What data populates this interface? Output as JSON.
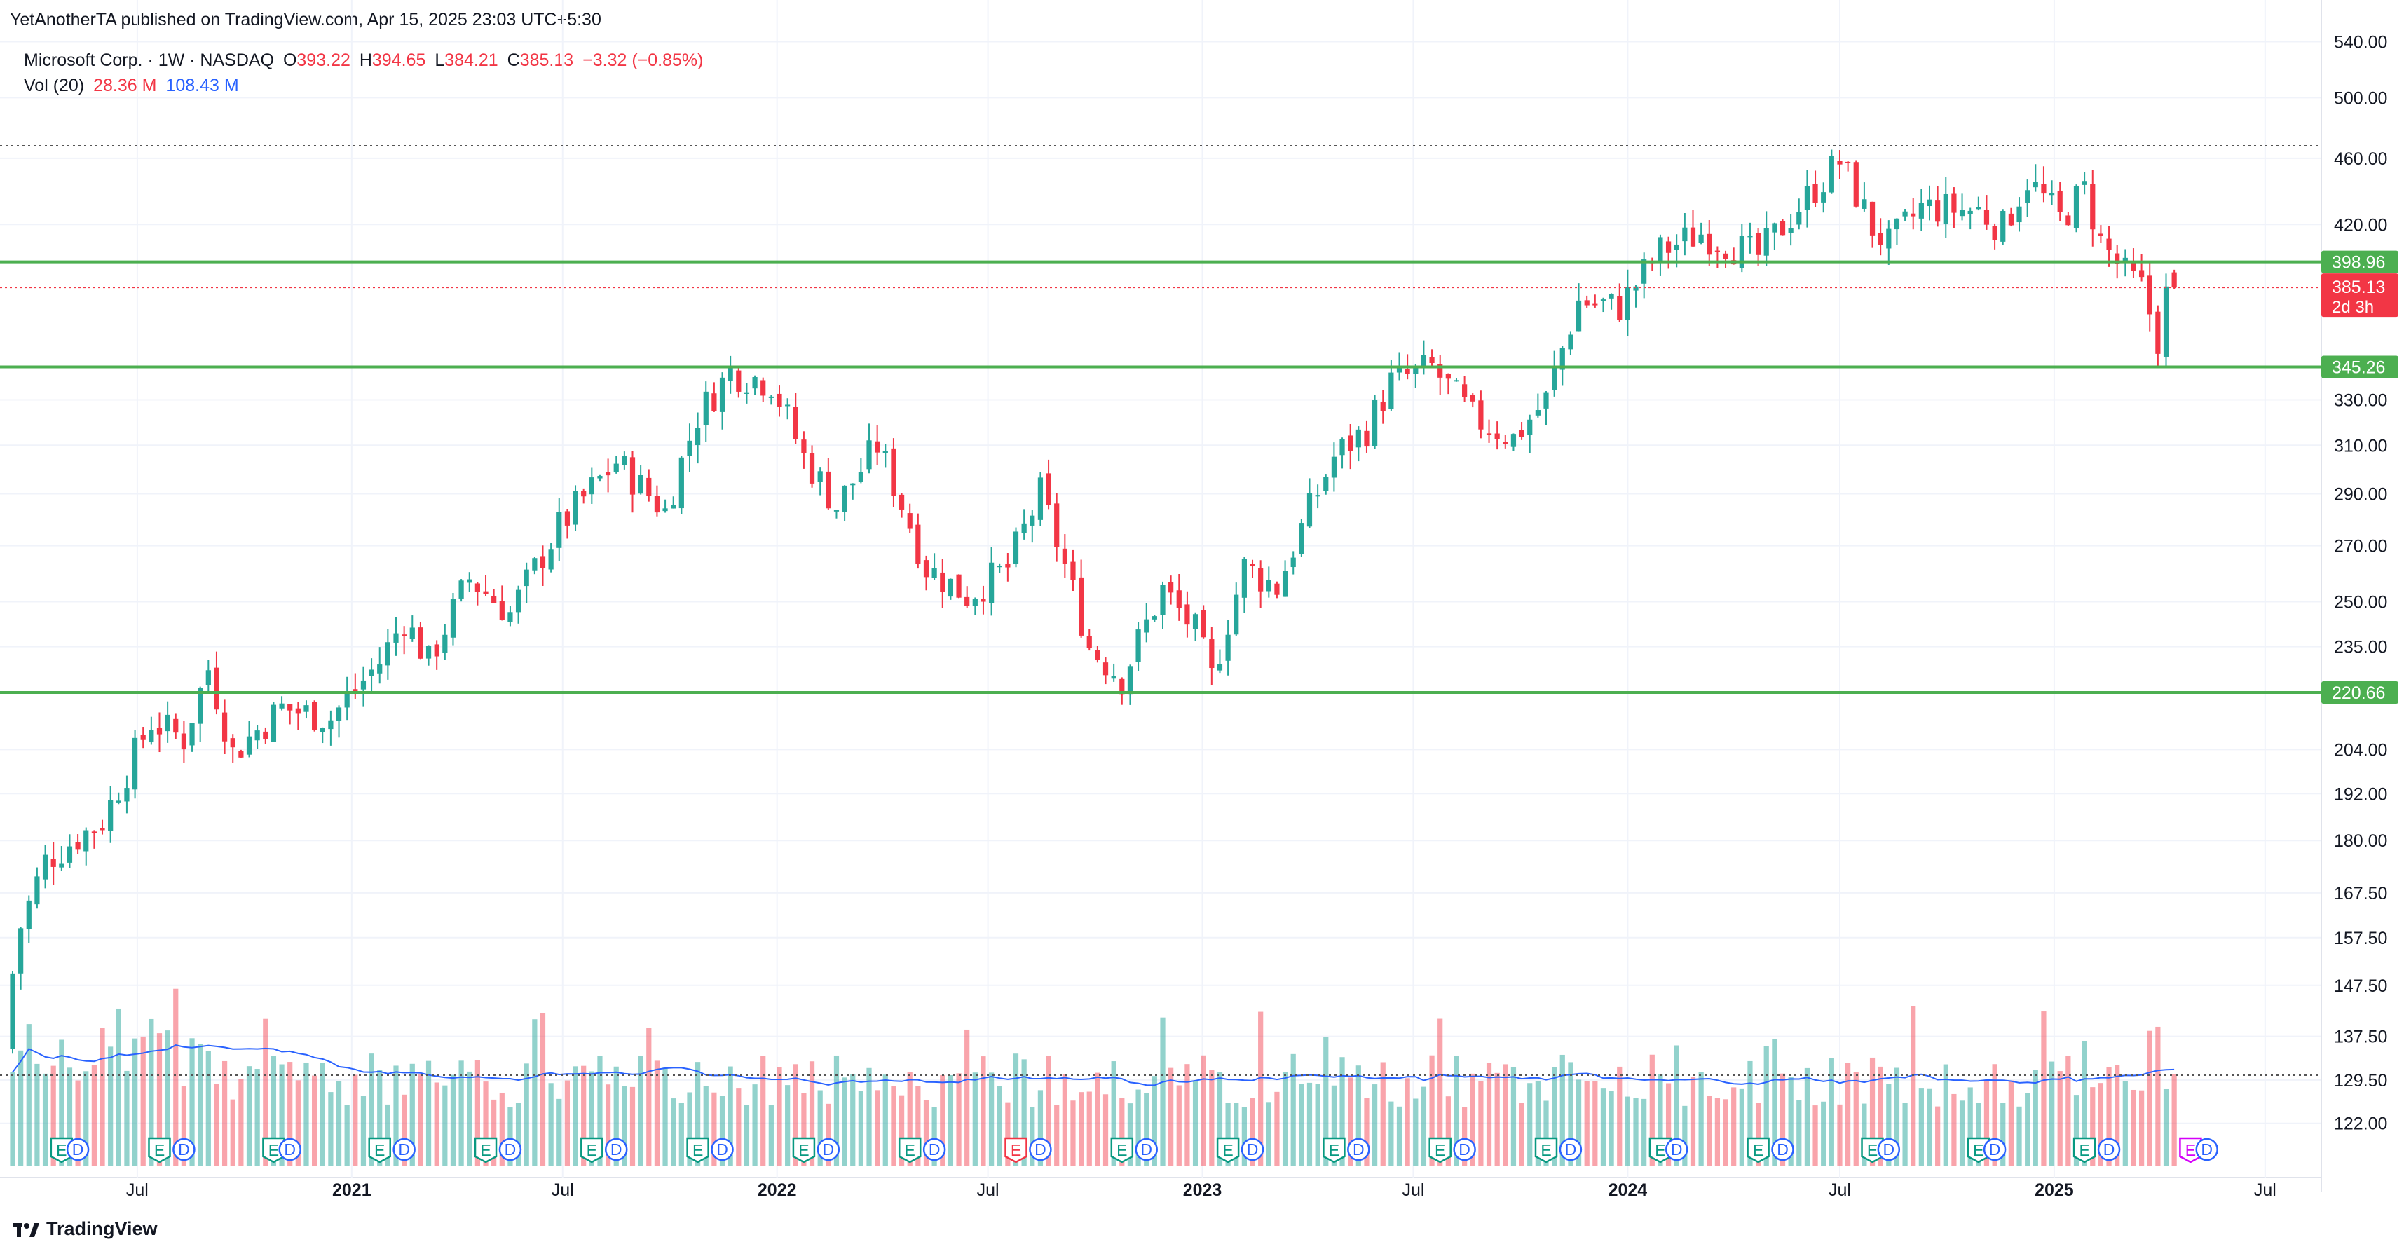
{
  "header": {
    "published": "YetAnotherTA published on TradingView.com, Apr 15, 2025 23:03 UTC+5:30"
  },
  "legend": {
    "symbol": "Microsoft Corp. · 1W · NASDAQ",
    "open_label": "O",
    "open": "393.22",
    "high_label": "H",
    "high": "394.65",
    "low_label": "L",
    "low": "384.21",
    "close_label": "C",
    "close": "385.13",
    "change": "−3.32 (−0.85%)",
    "vol_label": "Vol (20)",
    "vol_value": "28.36 M",
    "vol_ma": "108.43 M"
  },
  "brand": {
    "name": "TradingView"
  },
  "colors": {
    "up": "#26a69a",
    "down": "#f23645",
    "level": "#4caf50",
    "vol_ma": "#2962ff",
    "grid": "#f0f3fa"
  },
  "chart_data": {
    "type": "candlestick",
    "scale": "log",
    "ylim": [
      115,
      545
    ],
    "x_range": [
      "2020-03-16",
      "2025-08-11"
    ],
    "y_ticks": [
      "540.00",
      "500.00",
      "460.00",
      "420.00",
      "398.96",
      "385.13",
      "345.26",
      "330.00",
      "310.00",
      "290.00",
      "270.00",
      "250.00",
      "235.00",
      "220.66",
      "204.00",
      "192.00",
      "180.00",
      "167.50",
      "157.50",
      "147.50",
      "137.50",
      "129.50",
      "122.00"
    ],
    "y_tick_values": [
      540,
      500,
      460,
      420,
      330,
      310,
      290,
      270,
      250,
      235,
      204,
      192,
      180,
      167.5,
      157.5,
      147.5,
      137.5,
      129.5,
      122
    ],
    "x_ticks": [
      {
        "label": "Jul",
        "date": "2020-07-01",
        "bold": false
      },
      {
        "label": "2021",
        "date": "2021-01-01",
        "bold": true
      },
      {
        "label": "Jul",
        "date": "2021-07-01",
        "bold": false
      },
      {
        "label": "2022",
        "date": "2022-01-01",
        "bold": true
      },
      {
        "label": "Jul",
        "date": "2022-07-01",
        "bold": false
      },
      {
        "label": "2023",
        "date": "2023-01-01",
        "bold": true
      },
      {
        "label": "Jul",
        "date": "2023-07-01",
        "bold": false
      },
      {
        "label": "2024",
        "date": "2024-01-01",
        "bold": true
      },
      {
        "label": "Jul",
        "date": "2024-07-01",
        "bold": false
      },
      {
        "label": "2025",
        "date": "2025-01-01",
        "bold": true
      },
      {
        "label": "Jul",
        "date": "2025-07-01",
        "bold": false
      }
    ],
    "levels": [
      {
        "label": "398.96",
        "value": 398.96
      },
      {
        "label": "345.26",
        "value": 345.26
      },
      {
        "label": "220.66",
        "value": 220.66
      }
    ],
    "last_price": {
      "label": "385.13",
      "value": 385.13,
      "countdown": "2d 3h"
    },
    "ath_line": 468,
    "earnings": [
      {
        "date": "2020-04-27",
        "type": "E"
      },
      {
        "date": "2020-05-11",
        "type": "D"
      },
      {
        "date": "2020-07-20",
        "type": "E"
      },
      {
        "date": "2020-08-10",
        "type": "D"
      },
      {
        "date": "2020-10-26",
        "type": "E"
      },
      {
        "date": "2020-11-09",
        "type": "D"
      },
      {
        "date": "2021-01-25",
        "type": "E"
      },
      {
        "date": "2021-02-15",
        "type": "D"
      },
      {
        "date": "2021-04-26",
        "type": "E"
      },
      {
        "date": "2021-05-17",
        "type": "D"
      },
      {
        "date": "2021-07-26",
        "type": "E"
      },
      {
        "date": "2021-08-16",
        "type": "D"
      },
      {
        "date": "2021-10-25",
        "type": "E"
      },
      {
        "date": "2021-11-15",
        "type": "D"
      },
      {
        "date": "2022-01-24",
        "type": "E"
      },
      {
        "date": "2022-02-14",
        "type": "D"
      },
      {
        "date": "2022-04-25",
        "type": "E"
      },
      {
        "date": "2022-05-16",
        "type": "D"
      },
      {
        "date": "2022-07-25",
        "type": "E",
        "neg": true
      },
      {
        "date": "2022-08-15",
        "type": "D"
      },
      {
        "date": "2022-10-24",
        "type": "E"
      },
      {
        "date": "2022-11-14",
        "type": "D"
      },
      {
        "date": "2023-01-23",
        "type": "E"
      },
      {
        "date": "2023-02-13",
        "type": "D"
      },
      {
        "date": "2023-04-24",
        "type": "E"
      },
      {
        "date": "2023-05-15",
        "type": "D"
      },
      {
        "date": "2023-07-24",
        "type": "E"
      },
      {
        "date": "2023-08-14",
        "type": "D"
      },
      {
        "date": "2023-10-23",
        "type": "E"
      },
      {
        "date": "2023-11-13",
        "type": "D"
      },
      {
        "date": "2024-01-29",
        "type": "E"
      },
      {
        "date": "2024-02-12",
        "type": "D"
      },
      {
        "date": "2024-04-22",
        "type": "E"
      },
      {
        "date": "2024-05-13",
        "type": "D"
      },
      {
        "date": "2024-07-29",
        "type": "E"
      },
      {
        "date": "2024-08-12",
        "type": "D"
      },
      {
        "date": "2024-10-28",
        "type": "E"
      },
      {
        "date": "2024-11-11",
        "type": "D"
      },
      {
        "date": "2025-01-27",
        "type": "E"
      },
      {
        "date": "2025-02-17",
        "type": "D"
      },
      {
        "date": "2025-04-28",
        "type": "E",
        "upcoming": true
      },
      {
        "date": "2025-05-12",
        "type": "D",
        "upcoming": true
      }
    ],
    "price_path": [
      [
        "2020-03-16",
        150
      ],
      [
        "2020-03-23",
        160
      ],
      [
        "2020-04-13",
        175
      ],
      [
        "2020-06-01",
        185
      ],
      [
        "2020-06-22",
        198
      ],
      [
        "2020-07-13",
        212
      ],
      [
        "2020-08-10",
        207
      ],
      [
        "2020-08-31",
        228
      ],
      [
        "2020-09-21",
        203
      ],
      [
        "2020-11-02",
        216
      ],
      [
        "2020-12-14",
        213
      ],
      [
        "2021-01-25",
        230
      ],
      [
        "2021-02-15",
        244
      ],
      [
        "2021-03-08",
        230
      ],
      [
        "2021-04-12",
        258
      ],
      [
        "2021-05-17",
        246
      ],
      [
        "2021-06-28",
        277
      ],
      [
        "2021-08-16",
        303
      ],
      [
        "2021-09-27",
        283
      ],
      [
        "2021-10-25",
        323
      ],
      [
        "2021-11-22",
        343
      ],
      [
        "2021-12-27",
        338
      ],
      [
        "2022-01-24",
        305
      ],
      [
        "2022-02-21",
        285
      ],
      [
        "2022-03-28",
        310
      ],
      [
        "2022-05-09",
        262
      ],
      [
        "2022-06-13",
        252
      ],
      [
        "2022-07-18",
        262
      ],
      [
        "2022-08-15",
        290
      ],
      [
        "2022-09-26",
        235
      ],
      [
        "2022-10-24",
        225
      ],
      [
        "2022-11-28",
        254
      ],
      [
        "2022-12-26",
        240
      ],
      [
        "2023-01-09",
        225
      ],
      [
        "2023-02-06",
        262
      ],
      [
        "2023-03-06",
        255
      ],
      [
        "2023-04-24",
        305
      ],
      [
        "2023-05-22",
        317
      ],
      [
        "2023-06-12",
        338
      ],
      [
        "2023-07-17",
        345
      ],
      [
        "2023-08-21",
        322
      ],
      [
        "2023-09-25",
        313
      ],
      [
        "2023-10-23",
        330
      ],
      [
        "2023-11-20",
        378
      ],
      [
        "2023-12-25",
        375
      ],
      [
        "2024-01-29",
        405
      ],
      [
        "2024-03-04",
        415
      ],
      [
        "2024-04-22",
        402
      ],
      [
        "2024-05-20",
        425
      ],
      [
        "2024-07-01",
        458
      ],
      [
        "2024-07-29",
        418
      ],
      [
        "2024-08-12",
        408
      ],
      [
        "2024-09-09",
        430
      ],
      [
        "2024-10-28",
        428
      ],
      [
        "2024-11-18",
        418
      ],
      [
        "2024-12-09",
        447
      ],
      [
        "2025-01-06",
        423
      ],
      [
        "2025-01-27",
        440
      ],
      [
        "2025-02-10",
        410
      ],
      [
        "2025-03-03",
        392
      ],
      [
        "2025-03-17",
        385
      ],
      [
        "2025-03-31",
        359
      ],
      [
        "2025-04-07",
        381
      ],
      [
        "2025-04-14",
        385.13
      ]
    ],
    "volume_axis_max": 260
  }
}
